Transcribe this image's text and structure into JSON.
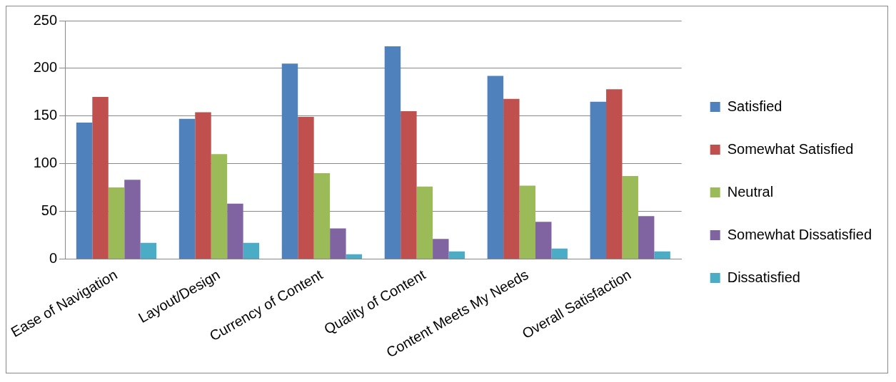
{
  "chart_data": {
    "type": "bar",
    "categories": [
      "Ease of Navigation",
      "Layout/Design",
      "Currency of Content",
      "Quality of Content",
      "Content Meets My Needs",
      "Overall Satisfaction"
    ],
    "series": [
      {
        "name": "Satisfied",
        "color": "#4f81bd",
        "values": [
          143,
          147,
          205,
          223,
          192,
          165
        ]
      },
      {
        "name": "Somewhat Satisfied",
        "color": "#c0504d",
        "values": [
          170,
          154,
          149,
          155,
          168,
          178
        ]
      },
      {
        "name": "Neutral",
        "color": "#9bbb59",
        "values": [
          75,
          110,
          90,
          76,
          77,
          87
        ]
      },
      {
        "name": "Somewhat Dissatisfied",
        "color": "#8064a2",
        "values": [
          83,
          58,
          32,
          21,
          39,
          45
        ]
      },
      {
        "name": "Dissatisfied",
        "color": "#4bacc6",
        "values": [
          17,
          17,
          5,
          8,
          11,
          8
        ]
      }
    ],
    "ylim": [
      0,
      250
    ],
    "yticks": [
      0,
      50,
      100,
      150,
      200,
      250
    ],
    "grid": "y",
    "legend": "right"
  }
}
